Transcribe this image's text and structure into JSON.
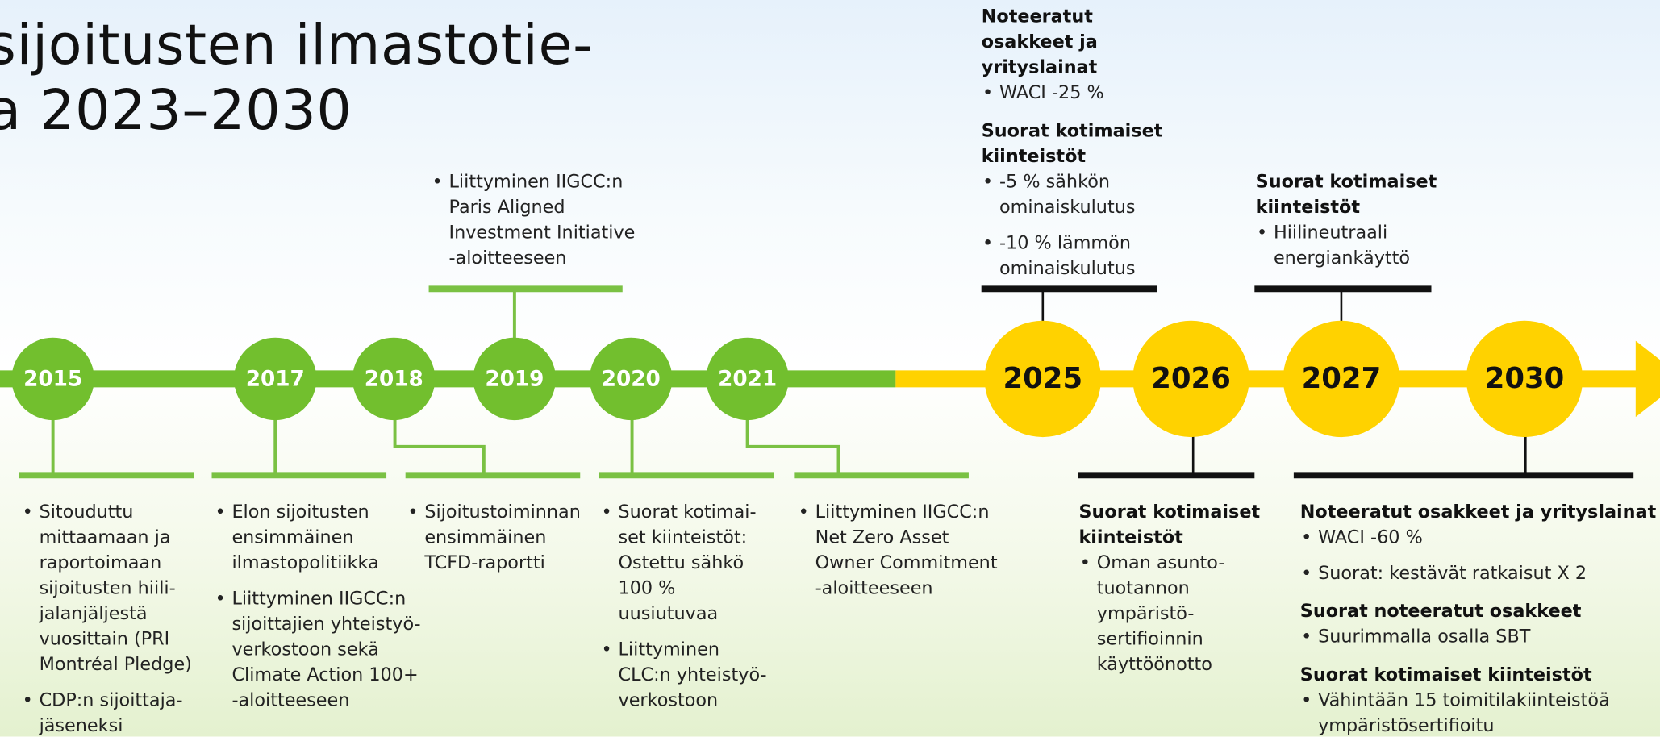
{
  "title": [
    "sijoitusten ilmastotie-",
    "a 2023–2030"
  ],
  "years": [
    "2015",
    "2017",
    "2018",
    "2019",
    "2020",
    "2021",
    "2025",
    "2026",
    "2027",
    "2030"
  ],
  "notes": [
    {
      "groups": [
        {
          "items": [
            [
              "Sitouduttu",
              "mittaamaan ja",
              "raportoimaan",
              "sijoitusten hiili-",
              "jalanjäljestä",
              "vuosittain (PRI",
              "Montréal Pledge)"
            ],
            [
              "CDP:n sijoittaja-",
              "jäseneksi"
            ]
          ]
        }
      ]
    },
    {
      "groups": [
        {
          "items": [
            [
              "Elon sijoitusten",
              "ensimmäinen",
              "ilmastopolitiikka"
            ],
            [
              "Liittyminen IIGCC:n",
              "sijoittajien yhteistyö-",
              "verkostoon sekä",
              "Climate Action 100+",
              "-aloitteeseen"
            ]
          ]
        }
      ]
    },
    {
      "groups": [
        {
          "items": [
            [
              "Sijoitustoiminnan",
              "ensimmäinen",
              "TCFD-raportti"
            ]
          ]
        }
      ]
    },
    {
      "groups": [
        {
          "items": [
            [
              "Liittyminen IIGCC:n",
              "Paris Aligned",
              "Investment Initiative",
              "-aloitteeseen"
            ]
          ]
        }
      ]
    },
    {
      "groups": [
        {
          "items": [
            [
              "Suorat kotimai-",
              "set kiinteistöt:",
              "Ostettu sähkö",
              "100 %",
              "uusiutuvaa"
            ],
            [
              "Liittyminen",
              "CLC:n yhteistyö-",
              "verkostoon"
            ]
          ]
        }
      ]
    },
    {
      "groups": [
        {
          "items": [
            [
              "Liittyminen IIGCC:n",
              "Net Zero Asset",
              "Owner Commitment",
              "-aloitteeseen"
            ]
          ]
        }
      ]
    },
    {
      "groups": [
        {
          "heading": [
            "Noteeratut",
            "osakkeet ja",
            "yrityslainat"
          ],
          "items": [
            [
              "WACI -25 %"
            ]
          ]
        },
        {
          "heading": [
            "Suorat kotimaiset",
            "kiinteistöt"
          ],
          "items": [
            [
              "-5 % sähkön",
              "ominaiskulutus"
            ],
            [
              "-10 % lämmön",
              "ominaiskulutus"
            ]
          ]
        }
      ]
    },
    {
      "groups": [
        {
          "heading": [
            "Suorat kotimaiset",
            "kiinteistöt"
          ],
          "items": [
            [
              "Oman asunto-",
              "tuotannon",
              "ympäristö-",
              "sertifioinnin",
              "käyttöönotto"
            ]
          ]
        }
      ]
    },
    {
      "groups": [
        {
          "heading": [
            "Suorat kotimaiset",
            "kiinteistöt"
          ],
          "items": [
            [
              "Hiilineutraali",
              "energiankäyttö"
            ]
          ]
        }
      ]
    },
    {
      "groups": [
        {
          "heading": [
            "Noteeratut osakkeet ja yrityslainat"
          ],
          "items": [
            [
              "WACI -60 %"
            ],
            [
              "Suorat: kestävät ratkaisut X 2"
            ]
          ]
        },
        {
          "heading": [
            "Suorat noteeratut osakkeet"
          ],
          "items": [
            [
              "Suurimmalla osalla SBT"
            ]
          ]
        },
        {
          "heading": [
            "Suorat kotimaiset kiinteistöt"
          ],
          "items": [
            [
              "Vähintään 15 toimitilakiinteistöä",
              "ympäristösertifioitu"
            ]
          ]
        }
      ]
    }
  ]
}
